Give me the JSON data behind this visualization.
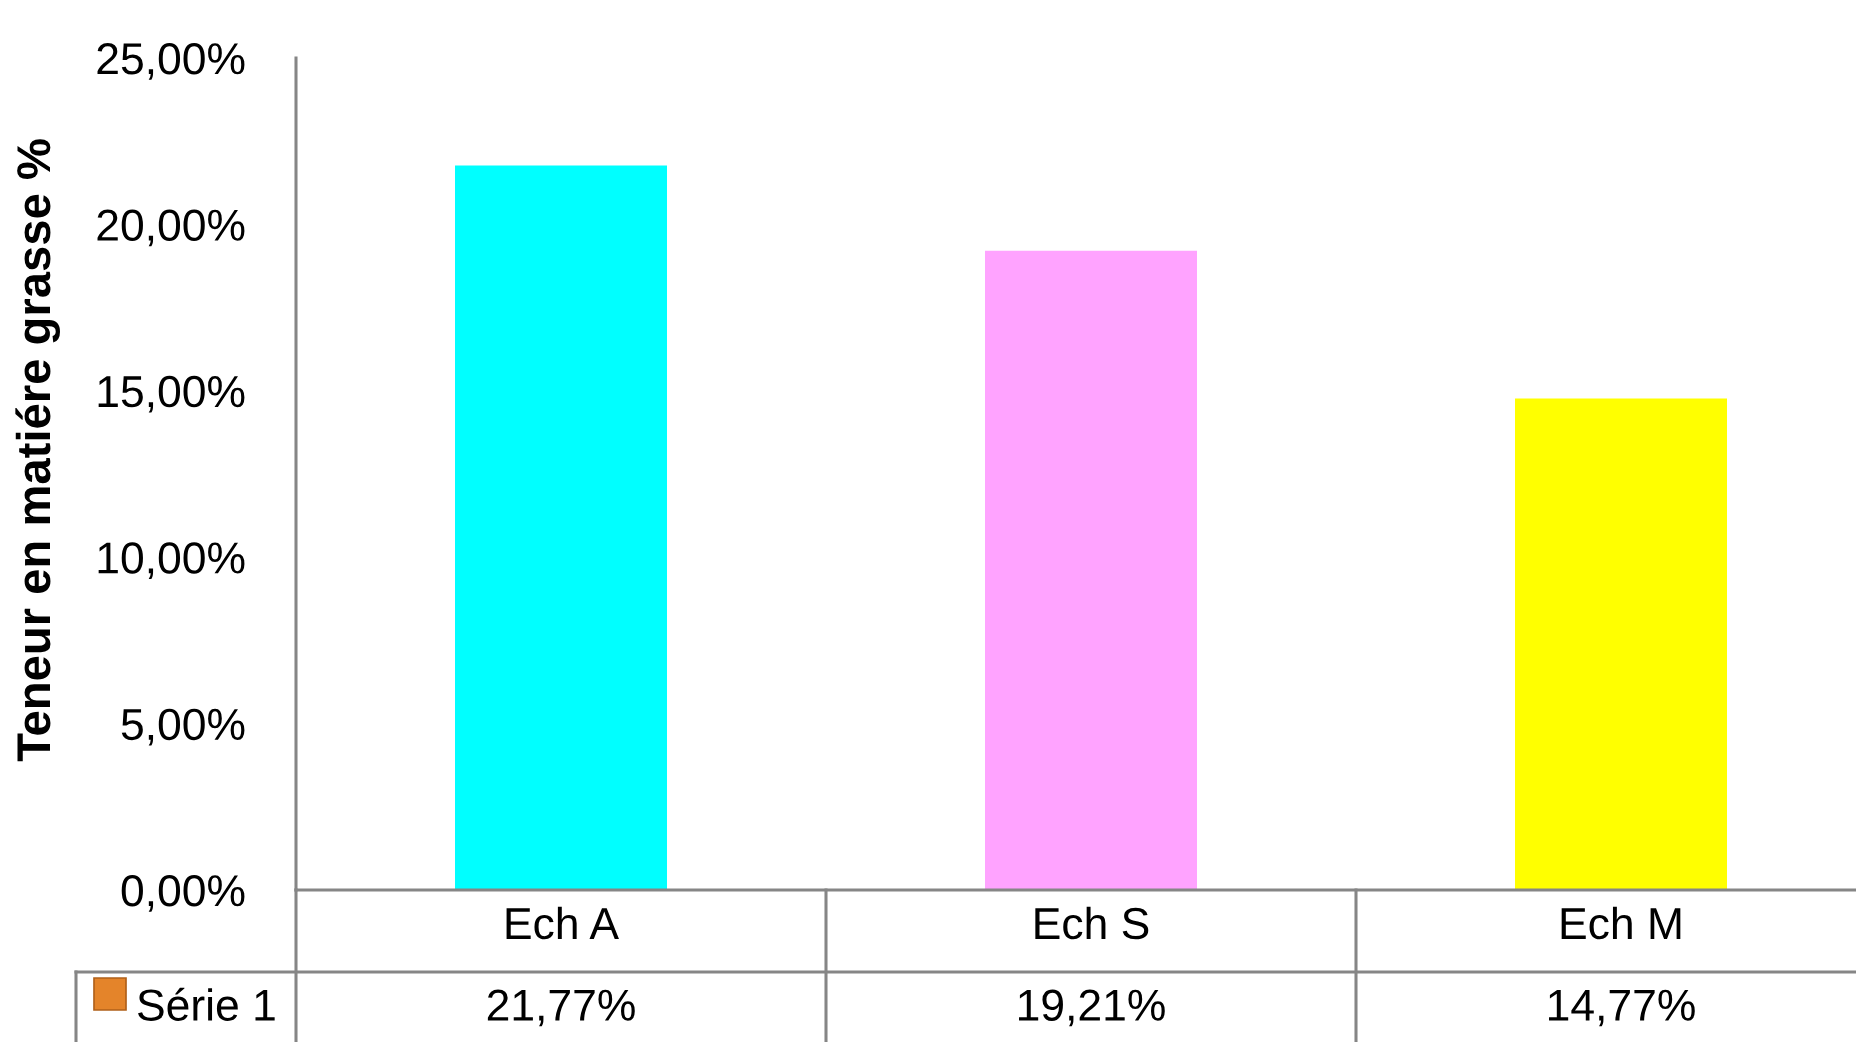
{
  "chart_data": {
    "type": "bar",
    "ylabel": "Teneur en matiére grasse %",
    "categories": [
      "Ech A",
      "Ech S",
      "Ech M"
    ],
    "series": [
      {
        "name": "Série 1",
        "color": "#e4842a",
        "colors": [
          "#00ffff",
          "#ffa3ff",
          "#ffff00"
        ],
        "values": [
          21.77,
          19.21,
          14.77
        ],
        "value_labels": [
          "21,77%",
          "19,21%",
          "14,77%"
        ]
      }
    ],
    "ylim": [
      0,
      25
    ],
    "yticks": [
      {
        "value": 0,
        "label": "0,00%"
      },
      {
        "value": 5,
        "label": "5,00%"
      },
      {
        "value": 10,
        "label": "10,00%"
      },
      {
        "value": 15,
        "label": "15,00%"
      },
      {
        "value": 20,
        "label": "20,00%"
      },
      {
        "value": 25,
        "label": "25,00%"
      }
    ],
    "grid": false,
    "legend": "bottom left"
  }
}
